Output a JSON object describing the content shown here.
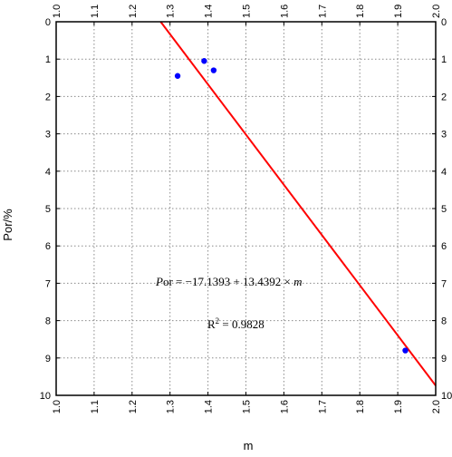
{
  "chart_data": {
    "type": "scatter",
    "xlabel": "m",
    "ylabel": "Por/%",
    "xlim": [
      1.0,
      2.0
    ],
    "ylim": [
      0,
      10
    ],
    "y_inverted": true,
    "x_ticks": [
      "1.0",
      "1.1",
      "1.2",
      "1.3",
      "1.4",
      "1.5",
      "1.6",
      "1.7",
      "1.8",
      "1.9",
      "2.0"
    ],
    "y_ticks": [
      "0",
      "1",
      "2",
      "3",
      "4",
      "5",
      "6",
      "7",
      "8",
      "9",
      "10"
    ],
    "grid": true,
    "grid_style": "dotted",
    "series": [
      {
        "kind": "points",
        "color": "#0000ff",
        "points": [
          {
            "x": 1.32,
            "y": 1.45
          },
          {
            "x": 1.39,
            "y": 1.05
          },
          {
            "x": 1.415,
            "y": 1.3
          },
          {
            "x": 1.92,
            "y": 8.8
          }
        ]
      },
      {
        "kind": "fit-line",
        "color": "#ff0000",
        "intercept": -17.1393,
        "slope": 13.4392
      }
    ],
    "annotations": {
      "equation_prefix": "P",
      "equation_rest": "or = −17.1393 + 13.4392 × ",
      "equation_var": "m",
      "r2_label": "R",
      "r2_exp": "2",
      "r2_value": " = 0.9828"
    }
  }
}
